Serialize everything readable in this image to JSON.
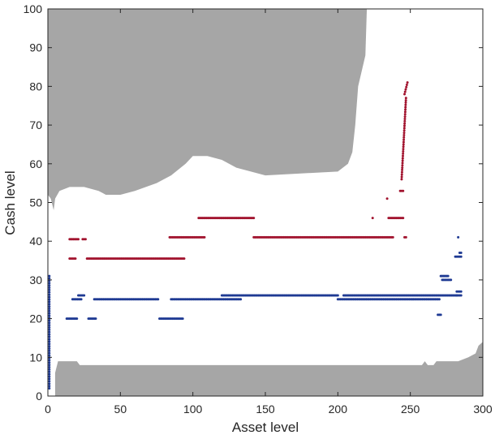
{
  "chart_data": {
    "type": "scatter",
    "title": "",
    "xlabel": "Asset level",
    "ylabel": "Cash level",
    "xlim": [
      0,
      300
    ],
    "ylim": [
      0,
      100
    ],
    "xticks": [
      0,
      50,
      100,
      150,
      200,
      250,
      300
    ],
    "yticks": [
      0,
      10,
      20,
      30,
      40,
      50,
      60,
      70,
      80,
      90,
      100
    ],
    "grid": false,
    "legend": "none",
    "colors": {
      "region": "#a6a6a6",
      "series_red": "#a2142f",
      "series_blue": "#1f3a93",
      "axis": "#262626"
    },
    "shaded_regions": [
      {
        "name": "upper-infeasible-region",
        "polygon": [
          [
            0,
            100
          ],
          [
            220,
            100
          ],
          [
            219,
            88
          ],
          [
            214,
            80
          ],
          [
            212,
            70
          ],
          [
            210,
            63
          ],
          [
            207,
            60
          ],
          [
            200,
            58
          ],
          [
            150,
            57
          ],
          [
            130,
            59
          ],
          [
            120,
            61
          ],
          [
            110,
            62
          ],
          [
            100,
            62
          ],
          [
            95,
            60
          ],
          [
            85,
            57
          ],
          [
            75,
            55
          ],
          [
            60,
            53
          ],
          [
            50,
            52
          ],
          [
            40,
            52
          ],
          [
            35,
            53
          ],
          [
            25,
            54
          ],
          [
            15,
            54
          ],
          [
            8,
            53
          ],
          [
            5,
            51
          ],
          [
            4,
            48
          ],
          [
            2,
            51
          ],
          [
            0,
            52
          ]
        ]
      },
      {
        "name": "lower-infeasible-region",
        "polygon": [
          [
            5,
            0
          ],
          [
            5,
            6
          ],
          [
            7,
            9
          ],
          [
            20,
            9
          ],
          [
            22,
            8
          ],
          [
            258,
            8
          ],
          [
            260,
            9
          ],
          [
            262,
            8
          ],
          [
            266,
            8
          ],
          [
            268,
            9
          ],
          [
            283,
            9
          ],
          [
            290,
            10
          ],
          [
            295,
            11
          ],
          [
            297,
            13
          ],
          [
            300,
            14
          ],
          [
            300,
            0
          ]
        ]
      }
    ],
    "series": [
      {
        "name": "",
        "color": "#a2142f",
        "segments": [
          {
            "x": [
              15,
              21
            ],
            "y": 40.5
          },
          {
            "x": [
              15,
              19
            ],
            "y": 35.5
          },
          {
            "x": [
              24,
              26
            ],
            "y": 40.5
          },
          {
            "x": [
              27,
              94
            ],
            "y": 35.5
          },
          {
            "x": [
              84,
              108
            ],
            "y": 41
          },
          {
            "x": [
              104,
              142
            ],
            "y": 46
          },
          {
            "x": [
              142,
              238
            ],
            "y": 41
          },
          {
            "x": [
              235,
              245
            ],
            "y": 46
          },
          {
            "x": [
              224,
              224
            ],
            "y": 46
          },
          {
            "x": [
              234,
              234
            ],
            "y": 51
          },
          {
            "x": [
              243,
              245
            ],
            "y": 53
          },
          {
            "x": [
              244,
              247
            ],
            "y": [
              56,
              77
            ]
          },
          {
            "x": [
              246,
              248
            ],
            "y": [
              78,
              81
            ]
          },
          {
            "x": [
              246,
              247
            ],
            "y": 41
          }
        ]
      },
      {
        "name": "",
        "color": "#1f3a93",
        "segments": [
          {
            "x": [
              1,
              1
            ],
            "y": [
              2,
              31
            ]
          },
          {
            "x": [
              13,
              20
            ],
            "y": 20
          },
          {
            "x": [
              17,
              23
            ],
            "y": 25
          },
          {
            "x": [
              21,
              25
            ],
            "y": 26
          },
          {
            "x": [
              28,
              33
            ],
            "y": 20
          },
          {
            "x": [
              32,
              76
            ],
            "y": 25
          },
          {
            "x": [
              77,
              93
            ],
            "y": 20
          },
          {
            "x": [
              85,
              133
            ],
            "y": 25
          },
          {
            "x": [
              120,
              200
            ],
            "y": 26
          },
          {
            "x": [
              200,
              270
            ],
            "y": 25
          },
          {
            "x": [
              204,
              282
            ],
            "y": 26
          },
          {
            "x": [
              269,
              271
            ],
            "y": 21
          },
          {
            "x": [
              271,
              276
            ],
            "y": 31
          },
          {
            "x": [
              272,
              278
            ],
            "y": 30
          },
          {
            "x": [
              281,
              285
            ],
            "y": 36
          },
          {
            "x": [
              284,
              285
            ],
            "y": 37
          },
          {
            "x": [
              282,
              285
            ],
            "y": 26
          },
          {
            "x": [
              282,
              285
            ],
            "y": 27
          },
          {
            "x": [
              283,
              283
            ],
            "y": 41
          }
        ]
      }
    ]
  }
}
